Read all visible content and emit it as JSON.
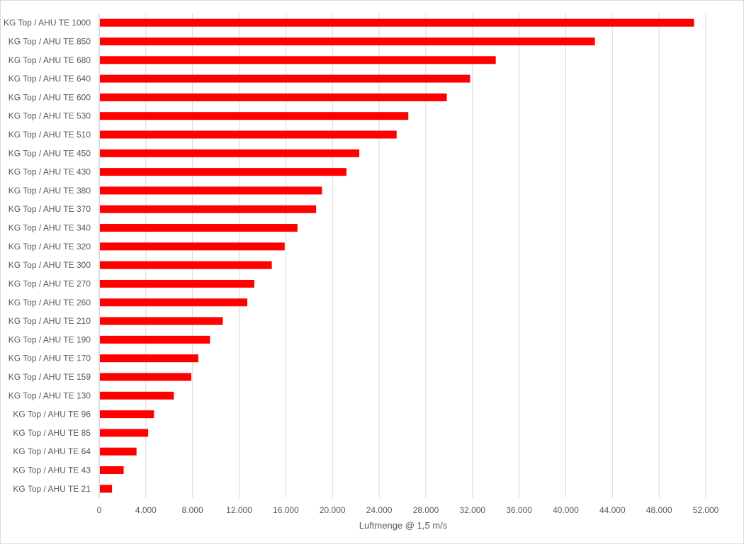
{
  "chart_data": {
    "type": "bar",
    "orientation": "horizontal",
    "title": "",
    "xlabel": "Luftmenge @ 1,5 m/s",
    "ylabel": "",
    "categories": [
      "KG Top / AHU TE 1000",
      "KG Top / AHU TE 850",
      "KG Top / AHU TE 680",
      "KG Top / AHU TE 640",
      "KG Top / AHU TE 600",
      "KG Top / AHU TE 530",
      "KG Top / AHU TE 510",
      "KG Top / AHU TE 450",
      "KG Top / AHU TE 430",
      "KG Top / AHU TE 380",
      "KG Top / AHU TE 370",
      "KG Top / AHU TE 340",
      "KG Top / AHU TE 320",
      "KG Top / AHU TE 300",
      "KG Top / AHU TE 270",
      "KG Top / AHU TE 260",
      "KG Top / AHU TE 210",
      "KG Top / AHU TE 190",
      "KG Top / AHU TE 170",
      "KG Top / AHU TE 159",
      "KG Top / AHU TE 130",
      "KG Top / AHU TE 96",
      "KG Top / AHU TE 85",
      "KG Top / AHU TE 64",
      "KG Top / AHU TE 43",
      "KG Top / AHU TE 21"
    ],
    "values": [
      51000,
      42500,
      34000,
      31800,
      29800,
      26500,
      25500,
      22300,
      21200,
      19100,
      18600,
      17000,
      15900,
      14800,
      13300,
      12700,
      10600,
      9500,
      8500,
      7900,
      6400,
      4700,
      4200,
      3200,
      2100,
      1100
    ],
    "xlim": [
      0,
      52000
    ],
    "xticks": [
      0,
      4000,
      8000,
      12000,
      16000,
      20000,
      24000,
      28000,
      32000,
      36000,
      40000,
      44000,
      48000,
      52000
    ],
    "xtick_labels": [
      "0",
      "4.000",
      "8.000",
      "12.000",
      "16.000",
      "20.000",
      "24.000",
      "28.000",
      "32.000",
      "36.000",
      "40.000",
      "44.000",
      "48.000",
      "52.000"
    ],
    "grid": true,
    "legend": "none",
    "bar_color": "#ff0000"
  }
}
